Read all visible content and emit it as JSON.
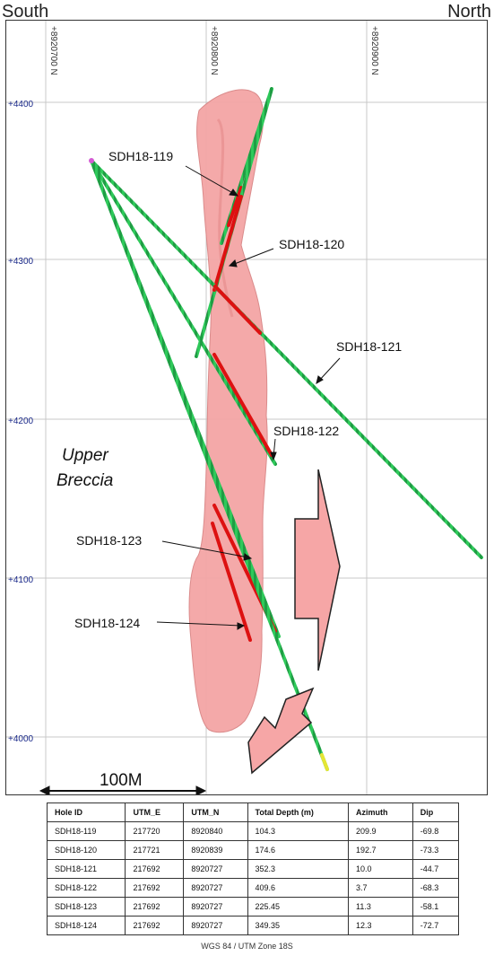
{
  "header": {
    "south_label": "South",
    "north_label": "North"
  },
  "gridlines": {
    "northings": [
      "+8920700 N",
      "+8920800 N",
      "+8920900 N"
    ],
    "elevations": [
      "+4400",
      "+4300",
      "+4200",
      "+4100",
      "+4000"
    ]
  },
  "unit_label": [
    "Upper",
    "Breccia"
  ],
  "scale_bar": {
    "label": "100M"
  },
  "holes": [
    {
      "id": "SDH18-119",
      "utm_e": "217720",
      "utm_n": "8920840",
      "total_depth": "104.3",
      "azimuth": "209.9",
      "dip": "-69.8"
    },
    {
      "id": "SDH18-120",
      "utm_e": "217721",
      "utm_n": "8920839",
      "total_depth": "174.6",
      "azimuth": "192.7",
      "dip": "-73.3"
    },
    {
      "id": "SDH18-121",
      "utm_e": "217692",
      "utm_n": "8920727",
      "total_depth": "352.3",
      "azimuth": "10.0",
      "dip": "-44.7"
    },
    {
      "id": "SDH18-122",
      "utm_e": "217692",
      "utm_n": "8920727",
      "total_depth": "409.6",
      "azimuth": "3.7",
      "dip": "-68.3"
    },
    {
      "id": "SDH18-123",
      "utm_e": "217692",
      "utm_n": "8920727",
      "total_depth": "225.45",
      "azimuth": "11.3",
      "dip": "-58.1"
    },
    {
      "id": "SDH18-124",
      "utm_e": "217692",
      "utm_n": "8920727",
      "total_depth": "349.35",
      "azimuth": "12.3",
      "dip": "-72.7"
    }
  ],
  "table": {
    "headers": [
      "Hole ID",
      "UTM_E",
      "UTM_N",
      "Total Depth (m)",
      "Azimuth",
      "Dip"
    ],
    "note": "WGS 84 / UTM Zone 18S"
  },
  "colors": {
    "breccia": "#f4a5a5",
    "drill_trace": "#22c55e",
    "mineralized": "#dd1111",
    "arrow_fill": "#f6a6a6",
    "grid": "#c8c8c8"
  }
}
